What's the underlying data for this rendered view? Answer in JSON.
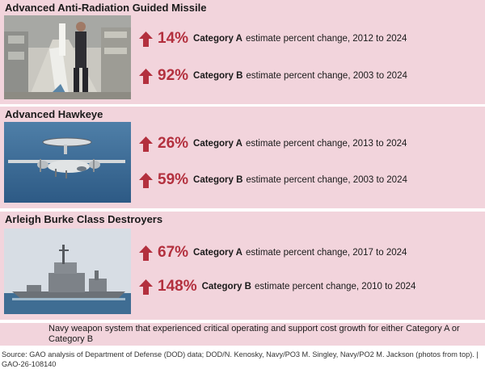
{
  "panels": [
    {
      "title": "Advanced Anti-Radiation Guided Missile",
      "photo": "missile-photo",
      "stats": [
        {
          "percent": "14%",
          "category": "Category A",
          "text": "estimate percent change, 2012 to 2024"
        },
        {
          "percent": "92%",
          "category": "Category B",
          "text": "estimate percent change, 2003 to 2024"
        }
      ]
    },
    {
      "title": "Advanced Hawkeye",
      "photo": "aircraft-photo",
      "stats": [
        {
          "percent": "26%",
          "category": "Category A",
          "text": "estimate percent change, 2013 to 2024"
        },
        {
          "percent": "59%",
          "category": "Category B",
          "text": "estimate percent change, 2003 to 2024"
        }
      ]
    },
    {
      "title": "Arleigh Burke Class Destroyers",
      "photo": "destroyer-photo",
      "stats": [
        {
          "percent": "67%",
          "category": "Category A",
          "text": "estimate percent change, 2017 to 2024"
        },
        {
          "percent": "148%",
          "category": "Category B",
          "text": "estimate percent change, 2010 to 2024"
        }
      ]
    }
  ],
  "legend": {
    "text": "Navy weapon system that experienced critical operating and support cost growth for either Category A or Category B"
  },
  "source": {
    "text": "Source: GAO analysis of Department of Defense (DOD) data; DOD/N. Kenosky, Navy/PO3 M. Singley, Navy/PO2 M. Jackson (photos from top).  |  GAO-26-108140"
  },
  "colors": {
    "panel_bg": "#f2d4dc",
    "accent": "#b3303e"
  },
  "icons": {
    "increase": "arrow-up-icon"
  }
}
